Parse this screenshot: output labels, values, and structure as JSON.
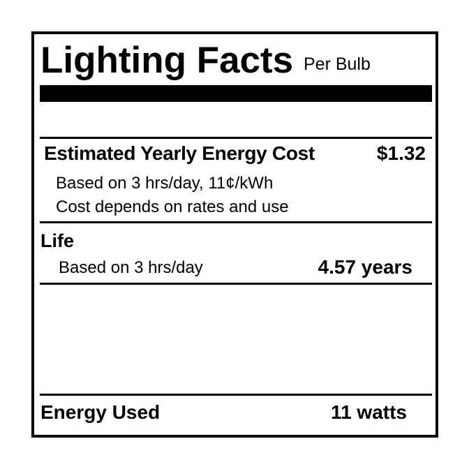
{
  "header": {
    "title": "Lighting Facts",
    "subtitle": "Per Bulb"
  },
  "cost": {
    "label": "Estimated Yearly Energy Cost",
    "value": "$1.32",
    "basis": "Based on 3 hrs/day, 11¢/kWh",
    "note": "Cost depends on rates and use"
  },
  "life": {
    "label": "Life",
    "basis": "Based on 3 hrs/day",
    "value": "4.57 years"
  },
  "energy": {
    "label": "Energy Used",
    "value": "11 watts"
  }
}
